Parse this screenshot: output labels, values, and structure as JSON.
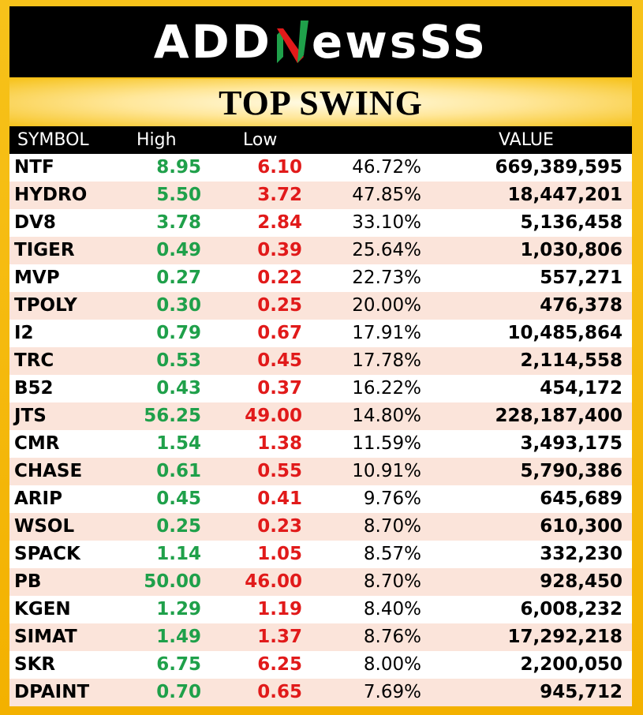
{
  "logo": {
    "prefix": "ADD",
    "suffix": "ewsSS"
  },
  "title": "TOP SWING",
  "colors": {
    "high": "#1fa04a",
    "low": "#e11a1a",
    "frame": "#f5b800",
    "row_alt": "#fbe4da"
  },
  "table": {
    "headers": {
      "symbol": "SYMBOL",
      "high": "High",
      "low": "Low",
      "percent": "",
      "value": "VALUE"
    },
    "rows": [
      {
        "symbol": "NTF",
        "high": "8.95",
        "low": "6.10",
        "percent": "46.72%",
        "value": "669,389,595"
      },
      {
        "symbol": "HYDRO",
        "high": "5.50",
        "low": "3.72",
        "percent": "47.85%",
        "value": "18,447,201"
      },
      {
        "symbol": "DV8",
        "high": "3.78",
        "low": "2.84",
        "percent": "33.10%",
        "value": "5,136,458"
      },
      {
        "symbol": "TIGER",
        "high": "0.49",
        "low": "0.39",
        "percent": "25.64%",
        "value": "1,030,806"
      },
      {
        "symbol": "MVP",
        "high": "0.27",
        "low": "0.22",
        "percent": "22.73%",
        "value": "557,271"
      },
      {
        "symbol": "TPOLY",
        "high": "0.30",
        "low": "0.25",
        "percent": "20.00%",
        "value": "476,378"
      },
      {
        "symbol": "I2",
        "high": "0.79",
        "low": "0.67",
        "percent": "17.91%",
        "value": "10,485,864"
      },
      {
        "symbol": "TRC",
        "high": "0.53",
        "low": "0.45",
        "percent": "17.78%",
        "value": "2,114,558"
      },
      {
        "symbol": "B52",
        "high": "0.43",
        "low": "0.37",
        "percent": "16.22%",
        "value": "454,172"
      },
      {
        "symbol": "JTS",
        "high": "56.25",
        "low": "49.00",
        "percent": "14.80%",
        "value": "228,187,400"
      },
      {
        "symbol": "CMR",
        "high": "1.54",
        "low": "1.38",
        "percent": "11.59%",
        "value": "3,493,175"
      },
      {
        "symbol": "CHASE",
        "high": "0.61",
        "low": "0.55",
        "percent": "10.91%",
        "value": "5,790,386"
      },
      {
        "symbol": "ARIP",
        "high": "0.45",
        "low": "0.41",
        "percent": "9.76%",
        "value": "645,689"
      },
      {
        "symbol": "WSOL",
        "high": "0.25",
        "low": "0.23",
        "percent": "8.70%",
        "value": "610,300"
      },
      {
        "symbol": "SPACK",
        "high": "1.14",
        "low": "1.05",
        "percent": "8.57%",
        "value": "332,230"
      },
      {
        "symbol": "PB",
        "high": "50.00",
        "low": "46.00",
        "percent": "8.70%",
        "value": "928,450"
      },
      {
        "symbol": "KGEN",
        "high": "1.29",
        "low": "1.19",
        "percent": "8.40%",
        "value": "6,008,232"
      },
      {
        "symbol": "SIMAT",
        "high": "1.49",
        "low": "1.37",
        "percent": "8.76%",
        "value": "17,292,218"
      },
      {
        "symbol": "SKR",
        "high": "6.75",
        "low": "6.25",
        "percent": "8.00%",
        "value": "2,200,050"
      },
      {
        "symbol": "DPAINT",
        "high": "0.70",
        "low": "0.65",
        "percent": "7.69%",
        "value": "945,712"
      }
    ]
  }
}
